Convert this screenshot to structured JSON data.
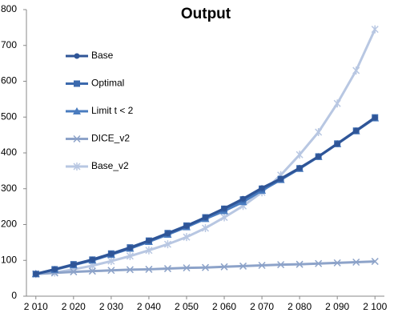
{
  "chart_data": {
    "type": "line",
    "title": "Output",
    "x": [
      2010,
      2015,
      2020,
      2025,
      2030,
      2035,
      2040,
      2045,
      2050,
      2055,
      2060,
      2065,
      2070,
      2075,
      2080,
      2085,
      2090,
      2095,
      2100
    ],
    "series": [
      {
        "name": "Base",
        "color": "#2f5597",
        "marker": "circle",
        "values": [
          62,
          75,
          88,
          102,
          118,
          135,
          155,
          175,
          196,
          220,
          245,
          272,
          302,
          328,
          358,
          390,
          425,
          462,
          498
        ]
      },
      {
        "name": "Optimal",
        "color": "#3b69ad",
        "marker": "square",
        "values": [
          62,
          75,
          89,
          102,
          119,
          136,
          155,
          176,
          197,
          220,
          244,
          270,
          300,
          327,
          357,
          390,
          426,
          462,
          499
        ]
      },
      {
        "name": "Limit t < 2",
        "color": "#4a7cbf",
        "marker": "triangle",
        "values": [
          62,
          74,
          87,
          100,
          116,
          133,
          152,
          172,
          193,
          216,
          238,
          263,
          295,
          325,
          356,
          389,
          425,
          461,
          497
        ]
      },
      {
        "name": "DICE_v2",
        "color": "#8da3c9",
        "marker": "x",
        "values": [
          62,
          65,
          68,
          70,
          72,
          74,
          75,
          77,
          79,
          80,
          82,
          84,
          86,
          88,
          89,
          91,
          93,
          95,
          97
        ]
      },
      {
        "name": "Base_v2",
        "color": "#b8c7e2",
        "marker": "star",
        "values": [
          62,
          66,
          75,
          85,
          98,
          112,
          128,
          145,
          165,
          190,
          220,
          252,
          290,
          338,
          395,
          458,
          538,
          630,
          745
        ]
      }
    ],
    "xlim": [
      2007.5,
      2102.5
    ],
    "xticks": [
      {
        "value": 2010,
        "label": "2 010"
      },
      {
        "value": 2020,
        "label": "2 020"
      },
      {
        "value": 2030,
        "label": "2 030"
      },
      {
        "value": 2040,
        "label": "2 040"
      },
      {
        "value": 2050,
        "label": "2 050"
      },
      {
        "value": 2060,
        "label": "2 060"
      },
      {
        "value": 2070,
        "label": "2 070"
      },
      {
        "value": 2080,
        "label": "2 080"
      },
      {
        "value": 2090,
        "label": "2 090"
      },
      {
        "value": 2100,
        "label": "2 100"
      }
    ],
    "ylim": [
      0,
      800
    ],
    "yticks": [
      0,
      100,
      200,
      300,
      400,
      500,
      600,
      700,
      800
    ],
    "grid": false,
    "legend": "upper left"
  }
}
